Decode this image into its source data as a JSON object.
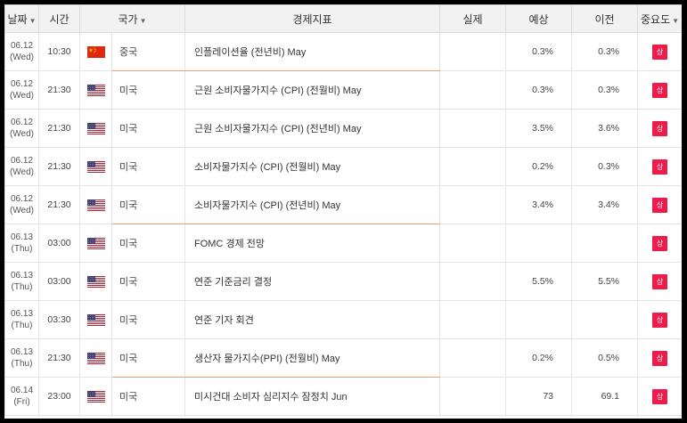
{
  "headers": {
    "date": "날짜",
    "time": "시간",
    "country": "국가",
    "indicator": "경제지표",
    "actual": "실제",
    "forecast": "예상",
    "previous": "이전",
    "importance": "중요도",
    "sort_arrow": "▼"
  },
  "colors": {
    "importance_badge": "#ee1c4a",
    "row_highlight": "#f0a066"
  },
  "rows": [
    {
      "date": "06.12",
      "day": "(Wed)",
      "time": "10:30",
      "flag": "china-flag-icon",
      "country": "중국",
      "indicator": "인플레이션율 (전년비) May",
      "actual": "",
      "forecast": "0.3%",
      "previous": "0.3%",
      "importance": "상"
    },
    {
      "date": "06.12",
      "day": "(Wed)",
      "time": "21:30",
      "flag": "us-flag-icon",
      "country": "미국",
      "indicator": "근원 소비자물가지수 (CPI) (전월비) May",
      "actual": "",
      "forecast": "0.3%",
      "previous": "0.3%",
      "importance": "상"
    },
    {
      "date": "06.12",
      "day": "(Wed)",
      "time": "21:30",
      "flag": "us-flag-icon",
      "country": "미국",
      "indicator": "근원 소비자물가지수 (CPI) (전년비) May",
      "actual": "",
      "forecast": "3.5%",
      "previous": "3.6%",
      "importance": "상"
    },
    {
      "date": "06.12",
      "day": "(Wed)",
      "time": "21:30",
      "flag": "us-flag-icon",
      "country": "미국",
      "indicator": "소비자물가지수 (CPI) (전월비) May",
      "actual": "",
      "forecast": "0.2%",
      "previous": "0.3%",
      "importance": "상"
    },
    {
      "date": "06.12",
      "day": "(Wed)",
      "time": "21:30",
      "flag": "us-flag-icon",
      "country": "미국",
      "indicator": "소비자물가지수 (CPI) (전년비) May",
      "actual": "",
      "forecast": "3.4%",
      "previous": "3.4%",
      "importance": "상"
    },
    {
      "date": "06.13",
      "day": "(Thu)",
      "time": "03:00",
      "flag": "us-flag-icon",
      "country": "미국",
      "indicator": "FOMC 경제 전망",
      "actual": "",
      "forecast": "",
      "previous": "",
      "importance": "상"
    },
    {
      "date": "06.13",
      "day": "(Thu)",
      "time": "03:00",
      "flag": "us-flag-icon",
      "country": "미국",
      "indicator": "연준 기준금리 결정",
      "actual": "",
      "forecast": "5.5%",
      "previous": "5.5%",
      "importance": "상"
    },
    {
      "date": "06.13",
      "day": "(Thu)",
      "time": "03:30",
      "flag": "us-flag-icon",
      "country": "미국",
      "indicator": "연준 기자 회견",
      "actual": "",
      "forecast": "",
      "previous": "",
      "importance": "상"
    },
    {
      "date": "06.13",
      "day": "(Thu)",
      "time": "21:30",
      "flag": "us-flag-icon",
      "country": "미국",
      "indicator": "생산자 물가지수(PPI) (전월비) May",
      "actual": "",
      "forecast": "0.2%",
      "previous": "0.5%",
      "importance": "상"
    },
    {
      "date": "06.14",
      "day": "(Fri)",
      "time": "23:00",
      "flag": "us-flag-icon",
      "country": "미국",
      "indicator": "미시건대 소비자 심리지수 잠정치 Jun",
      "actual": "",
      "forecast": "73",
      "previous": "69.1",
      "importance": "상"
    }
  ]
}
